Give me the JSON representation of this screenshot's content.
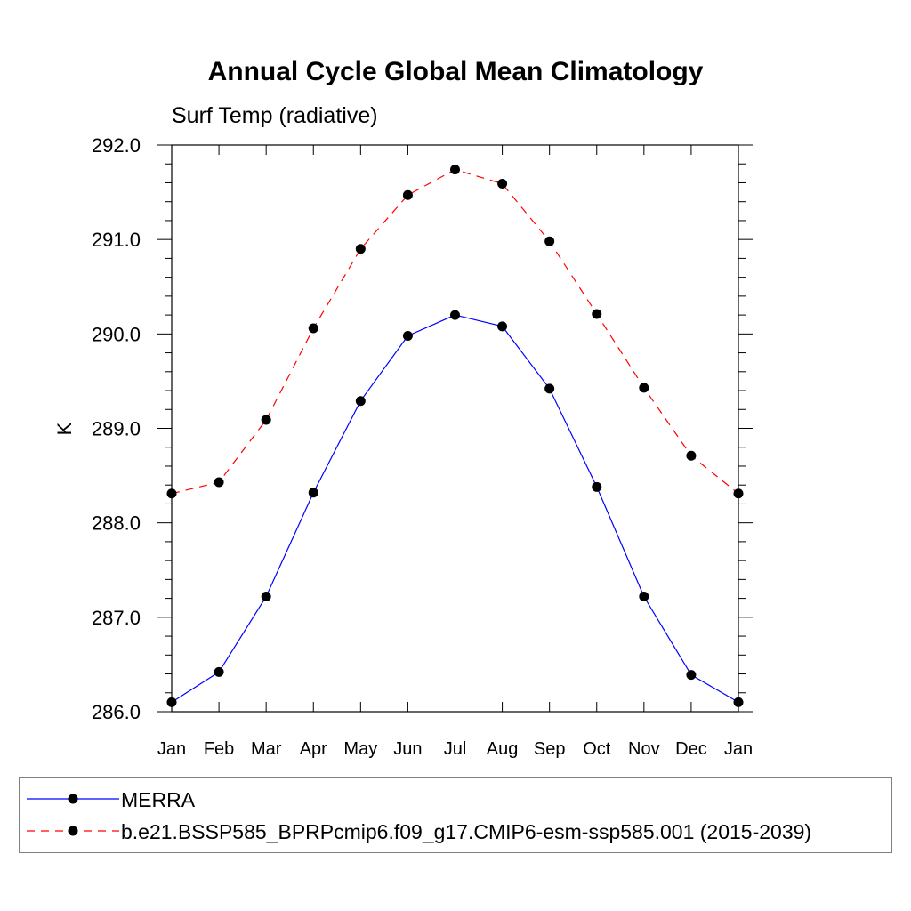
{
  "chart_data": {
    "type": "line",
    "title": "Annual Cycle Global Mean Climatology",
    "subtitle": "Surf Temp (radiative)",
    "xlabel": "",
    "ylabel": "K",
    "categories": [
      "Jan",
      "Feb",
      "Mar",
      "Apr",
      "May",
      "Jun",
      "Jul",
      "Aug",
      "Sep",
      "Oct",
      "Nov",
      "Dec",
      "Jan"
    ],
    "ylim": [
      286.0,
      292.0
    ],
    "yticks": [
      "286.0",
      "287.0",
      "288.0",
      "289.0",
      "290.0",
      "291.0",
      "292.0"
    ],
    "grid": false,
    "legend_position": "bottom",
    "series": [
      {
        "name": "MERRA",
        "color": "#0000ff",
        "dash": "solid",
        "marker": "filled-circle",
        "values": [
          286.1,
          286.42,
          287.22,
          288.32,
          289.29,
          289.98,
          290.2,
          290.08,
          289.42,
          288.38,
          287.22,
          286.39,
          286.1
        ]
      },
      {
        "name": "b.e21.BSSP585_BPRPcmip6.f09_g17.CMIP6-esm-ssp585.001 (2015-2039)",
        "color": "#ff0000",
        "dash": "dashed",
        "marker": "filled-circle",
        "values": [
          288.31,
          288.43,
          289.09,
          290.06,
          290.9,
          291.47,
          291.74,
          291.59,
          290.98,
          290.21,
          289.43,
          288.71,
          288.31
        ]
      }
    ]
  }
}
